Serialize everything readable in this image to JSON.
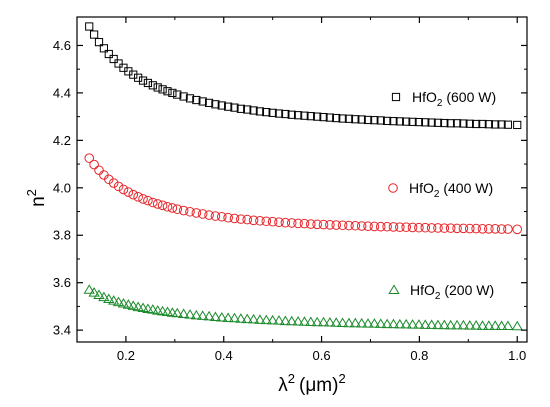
{
  "chart_data": {
    "type": "scatter",
    "xlabel": "λ",
    "xlabel_sup1": "2",
    "xlabel_unit": "(μm)",
    "xlabel_sup2": "2",
    "ylabel": "n",
    "ylabel_sup": "2",
    "xlim": [
      0.1,
      1.02
    ],
    "ylim": [
      3.35,
      4.72
    ],
    "xticks": [
      {
        "value": 0.2,
        "label": "0.2"
      },
      {
        "value": 0.4,
        "label": "0.4"
      },
      {
        "value": 0.6,
        "label": "0.6"
      },
      {
        "value": 0.8,
        "label": "0.8"
      },
      {
        "value": 1.0,
        "label": "1.0"
      }
    ],
    "yticks": [
      {
        "value": 3.4,
        "label": "3.4"
      },
      {
        "value": 3.6,
        "label": "3.6"
      },
      {
        "value": 3.8,
        "label": "3.8"
      },
      {
        "value": 4.0,
        "label": "4.0"
      },
      {
        "value": 4.2,
        "label": "4.2"
      },
      {
        "value": 4.4,
        "label": "4.4"
      },
      {
        "value": 4.6,
        "label": "4.6"
      }
    ],
    "grid": false,
    "legend_placement": "inline-right",
    "series": [
      {
        "name_main": "HfO",
        "name_sub": "2",
        "name_rest": " (600 W)",
        "marker": "square",
        "color": "#000000",
        "x": [
          0.125,
          0.135,
          0.145,
          0.155,
          0.165,
          0.175,
          0.185,
          0.195,
          0.205,
          0.215,
          0.225,
          0.235,
          0.245,
          0.255,
          0.265,
          0.275,
          0.285,
          0.295,
          0.305,
          0.318,
          0.331,
          0.344,
          0.357,
          0.37,
          0.383,
          0.396,
          0.409,
          0.422,
          0.435,
          0.448,
          0.461,
          0.474,
          0.487,
          0.5,
          0.513,
          0.526,
          0.539,
          0.552,
          0.565,
          0.578,
          0.591,
          0.604,
          0.617,
          0.63,
          0.643,
          0.656,
          0.669,
          0.682,
          0.695,
          0.708,
          0.721,
          0.734,
          0.747,
          0.76,
          0.773,
          0.786,
          0.799,
          0.812,
          0.825,
          0.838,
          0.851,
          0.864,
          0.877,
          0.89,
          0.903,
          0.916,
          0.929,
          0.942,
          0.955,
          0.968,
          0.981,
          1.0
        ],
        "y": [
          4.68,
          4.646,
          4.614,
          4.588,
          4.564,
          4.543,
          4.524,
          4.506,
          4.491,
          4.477,
          4.464,
          4.452,
          4.442,
          4.432,
          4.423,
          4.415,
          4.407,
          4.4,
          4.393,
          4.385,
          4.377,
          4.37,
          4.364,
          4.358,
          4.352,
          4.347,
          4.342,
          4.338,
          4.333,
          4.33,
          4.326,
          4.322,
          4.319,
          4.316,
          4.313,
          4.311,
          4.308,
          4.306,
          4.304,
          4.302,
          4.3,
          4.298,
          4.296,
          4.294,
          4.292,
          4.291,
          4.289,
          4.288,
          4.286,
          4.285,
          4.284,
          4.282,
          4.281,
          4.28,
          4.279,
          4.278,
          4.277,
          4.276,
          4.275,
          4.274,
          4.273,
          4.272,
          4.272,
          4.271,
          4.27,
          4.269,
          4.269,
          4.268,
          4.267,
          4.267,
          4.266,
          4.265
        ]
      },
      {
        "name_main": "HfO",
        "name_sub": "2",
        "name_rest": " (400 W)",
        "marker": "circle",
        "color": "#e8262b",
        "x": [
          0.125,
          0.135,
          0.145,
          0.155,
          0.165,
          0.175,
          0.185,
          0.195,
          0.205,
          0.215,
          0.225,
          0.235,
          0.245,
          0.255,
          0.265,
          0.275,
          0.285,
          0.295,
          0.305,
          0.318,
          0.331,
          0.344,
          0.357,
          0.37,
          0.383,
          0.396,
          0.409,
          0.422,
          0.435,
          0.448,
          0.461,
          0.474,
          0.487,
          0.5,
          0.513,
          0.526,
          0.539,
          0.552,
          0.565,
          0.578,
          0.591,
          0.604,
          0.617,
          0.63,
          0.643,
          0.656,
          0.669,
          0.682,
          0.695,
          0.708,
          0.721,
          0.734,
          0.747,
          0.76,
          0.773,
          0.786,
          0.799,
          0.812,
          0.825,
          0.838,
          0.851,
          0.864,
          0.877,
          0.89,
          0.903,
          0.916,
          0.929,
          0.942,
          0.955,
          0.968,
          0.981,
          1.0
        ],
        "y": [
          4.125,
          4.098,
          4.074,
          4.054,
          4.036,
          4.02,
          4.006,
          3.993,
          3.982,
          3.971,
          3.962,
          3.953,
          3.946,
          3.938,
          3.932,
          3.926,
          3.92,
          3.915,
          3.91,
          3.904,
          3.899,
          3.894,
          3.89,
          3.885,
          3.881,
          3.878,
          3.874,
          3.871,
          3.868,
          3.866,
          3.863,
          3.861,
          3.859,
          3.857,
          3.855,
          3.853,
          3.852,
          3.85,
          3.849,
          3.847,
          3.846,
          3.845,
          3.844,
          3.843,
          3.842,
          3.841,
          3.84,
          3.839,
          3.838,
          3.837,
          3.836,
          3.836,
          3.835,
          3.834,
          3.834,
          3.833,
          3.832,
          3.832,
          3.831,
          3.831,
          3.83,
          3.83,
          3.829,
          3.829,
          3.828,
          3.828,
          3.827,
          3.827,
          3.827,
          3.826,
          3.826,
          3.825
        ]
      },
      {
        "name_main": "HfO",
        "name_sub": "2",
        "name_rest": " (200 W)",
        "marker": "triangle",
        "color": "#1a8a2a",
        "x": [
          0.125,
          0.135,
          0.145,
          0.155,
          0.165,
          0.175,
          0.185,
          0.195,
          0.205,
          0.215,
          0.225,
          0.235,
          0.245,
          0.255,
          0.265,
          0.275,
          0.285,
          0.295,
          0.305,
          0.318,
          0.331,
          0.344,
          0.357,
          0.37,
          0.383,
          0.396,
          0.409,
          0.422,
          0.435,
          0.448,
          0.461,
          0.474,
          0.487,
          0.5,
          0.513,
          0.526,
          0.539,
          0.552,
          0.565,
          0.578,
          0.591,
          0.604,
          0.617,
          0.63,
          0.643,
          0.656,
          0.669,
          0.682,
          0.695,
          0.708,
          0.721,
          0.734,
          0.747,
          0.76,
          0.773,
          0.786,
          0.799,
          0.812,
          0.825,
          0.838,
          0.851,
          0.864,
          0.877,
          0.89,
          0.903,
          0.916,
          0.929,
          0.942,
          0.955,
          0.968,
          0.981,
          1.0
        ],
        "y": [
          3.57,
          3.558,
          3.548,
          3.539,
          3.531,
          3.524,
          3.518,
          3.512,
          3.507,
          3.502,
          3.497,
          3.493,
          3.489,
          3.486,
          3.482,
          3.479,
          3.476,
          3.473,
          3.471,
          3.468,
          3.465,
          3.462,
          3.46,
          3.458,
          3.455,
          3.453,
          3.451,
          3.45,
          3.448,
          3.446,
          3.445,
          3.443,
          3.442,
          3.441,
          3.44,
          3.438,
          3.437,
          3.436,
          3.435,
          3.434,
          3.433,
          3.433,
          3.432,
          3.431,
          3.43,
          3.429,
          3.429,
          3.428,
          3.427,
          3.427,
          3.426,
          3.425,
          3.425,
          3.424,
          3.424,
          3.423,
          3.423,
          3.422,
          3.422,
          3.421,
          3.421,
          3.42,
          3.42,
          3.42,
          3.419,
          3.419,
          3.418,
          3.418,
          3.418,
          3.417,
          3.417,
          3.416
        ]
      }
    ]
  }
}
